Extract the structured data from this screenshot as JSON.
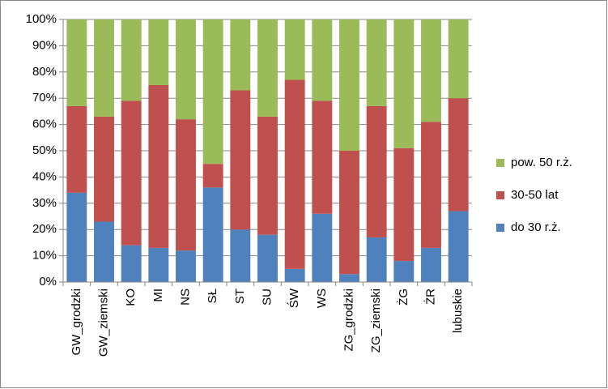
{
  "chart_data": {
    "type": "stacked_bar_100",
    "categories": [
      "GW_grodzki",
      "GW_ziemski",
      "KO",
      "MI",
      "NS",
      "SŁ",
      "ST",
      "SU",
      "ŚW",
      "WS",
      "ZG_grodzki",
      "ZG_ziemski",
      "ŻG",
      "ŻR",
      "lubuskie"
    ],
    "series": [
      {
        "name": "do 30 r.ż.",
        "color": "#4f81bd",
        "values": [
          34,
          23,
          14,
          13,
          12,
          36,
          20,
          18,
          5,
          26,
          3,
          17,
          8,
          13,
          27
        ]
      },
      {
        "name": "30-50 lat",
        "color": "#c0504d",
        "values": [
          33,
          40,
          55,
          62,
          50,
          9,
          53,
          45,
          72,
          43,
          47,
          50,
          43,
          48,
          43
        ]
      },
      {
        "name": "pow. 50 r.ż.",
        "color": "#9bbb59",
        "values": [
          33,
          37,
          31,
          25,
          38,
          55,
          27,
          37,
          23,
          31,
          50,
          33,
          49,
          39,
          30
        ]
      }
    ],
    "ylim": [
      0,
      100
    ],
    "yticks": [
      {
        "value": 0,
        "label": "0%"
      },
      {
        "value": 10,
        "label": "10%"
      },
      {
        "value": 20,
        "label": "20%"
      },
      {
        "value": 30,
        "label": "30%"
      },
      {
        "value": 40,
        "label": "40%"
      },
      {
        "value": 50,
        "label": "50%"
      },
      {
        "value": 60,
        "label": "60%"
      },
      {
        "value": 70,
        "label": "70%"
      },
      {
        "value": 80,
        "label": "80%"
      },
      {
        "value": 90,
        "label": "90%"
      },
      {
        "value": 100,
        "label": "100%"
      }
    ],
    "grid": true,
    "legend": "right"
  }
}
